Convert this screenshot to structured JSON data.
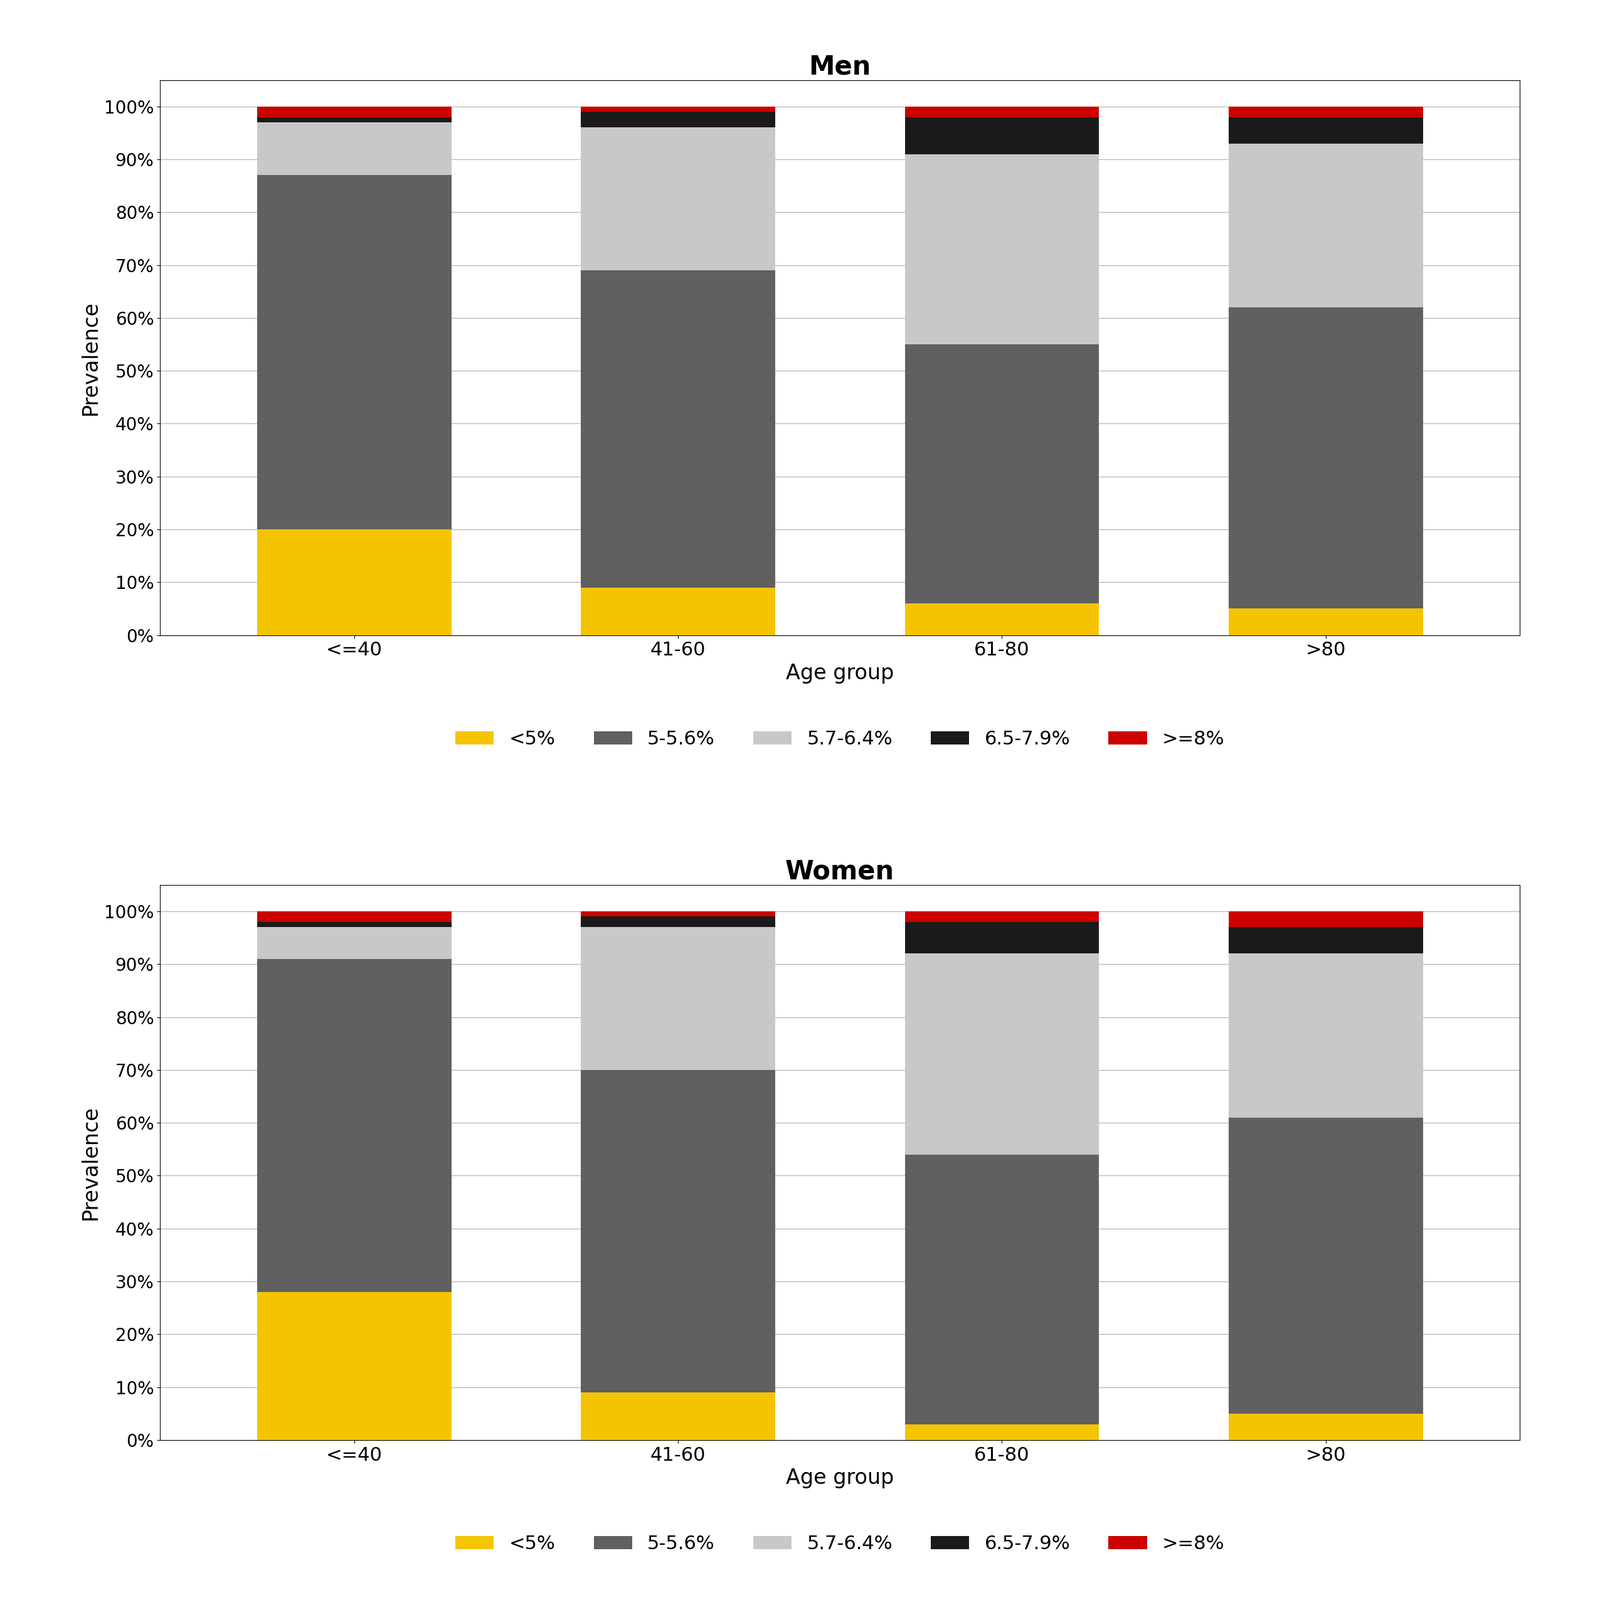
{
  "chart_data": [
    {
      "type": "bar",
      "stacked": true,
      "title": "Men",
      "xlabel": "Age group",
      "ylabel": "Prevalence",
      "categories": [
        "<=40",
        "41-60",
        "61-80",
        ">80"
      ],
      "series": [
        {
          "name": "<5%",
          "color": "#F5C400",
          "values": [
            20,
            9,
            6,
            5
          ]
        },
        {
          "name": "5-5.6%",
          "color": "#606060",
          "values": [
            67,
            60,
            49,
            57
          ]
        },
        {
          "name": "5.7-6.4%",
          "color": "#C8C8C8",
          "values": [
            10,
            27,
            36,
            31
          ]
        },
        {
          "name": "6.5-7.9%",
          "color": "#1A1A1A",
          "values": [
            1,
            3,
            7,
            5
          ]
        },
        {
          "name": ">=8%",
          "color": "#CC0000",
          "values": [
            2,
            1,
            2,
            2
          ]
        }
      ],
      "ylim": [
        0,
        105
      ],
      "yticks": [
        {
          "value": 0,
          "label": "0%"
        },
        {
          "value": 10,
          "label": "10%"
        },
        {
          "value": 20,
          "label": "20%"
        },
        {
          "value": 30,
          "label": "30%"
        },
        {
          "value": 40,
          "label": "40%"
        },
        {
          "value": 50,
          "label": "50%"
        },
        {
          "value": 60,
          "label": "60%"
        },
        {
          "value": 70,
          "label": "70%"
        },
        {
          "value": 80,
          "label": "80%"
        },
        {
          "value": 90,
          "label": "90%"
        },
        {
          "value": 100,
          "label": "100%"
        }
      ],
      "grid": true,
      "legend": "upper center"
    },
    {
      "type": "bar",
      "stacked": true,
      "title": "Women",
      "xlabel": "Age group",
      "ylabel": "Prevalence",
      "categories": [
        "<=40",
        "41-60",
        "61-80",
        ">80"
      ],
      "series": [
        {
          "name": "<5%",
          "color": "#F5C400",
          "values": [
            28,
            9,
            3,
            5
          ]
        },
        {
          "name": "5-5.6%",
          "color": "#606060",
          "values": [
            63,
            61,
            51,
            56
          ]
        },
        {
          "name": "5.7-6.4%",
          "color": "#C8C8C8",
          "values": [
            6,
            27,
            38,
            31
          ]
        },
        {
          "name": "6.5-7.9%",
          "color": "#1A1A1A",
          "values": [
            1,
            2,
            6,
            5
          ]
        },
        {
          "name": ">=8%",
          "color": "#CC0000",
          "values": [
            2,
            1,
            2,
            3
          ]
        }
      ],
      "ylim": [
        0,
        105
      ],
      "yticks": [
        {
          "value": 0,
          "label": "0%"
        },
        {
          "value": 10,
          "label": "10%"
        },
        {
          "value": 20,
          "label": "20%"
        },
        {
          "value": 30,
          "label": "30%"
        },
        {
          "value": 40,
          "label": "40%"
        },
        {
          "value": 50,
          "label": "50%"
        },
        {
          "value": 60,
          "label": "60%"
        },
        {
          "value": 70,
          "label": "70%"
        },
        {
          "value": 80,
          "label": "80%"
        },
        {
          "value": 90,
          "label": "90%"
        },
        {
          "value": 100,
          "label": "100%"
        }
      ],
      "grid": true,
      "legend": "upper center"
    }
  ]
}
